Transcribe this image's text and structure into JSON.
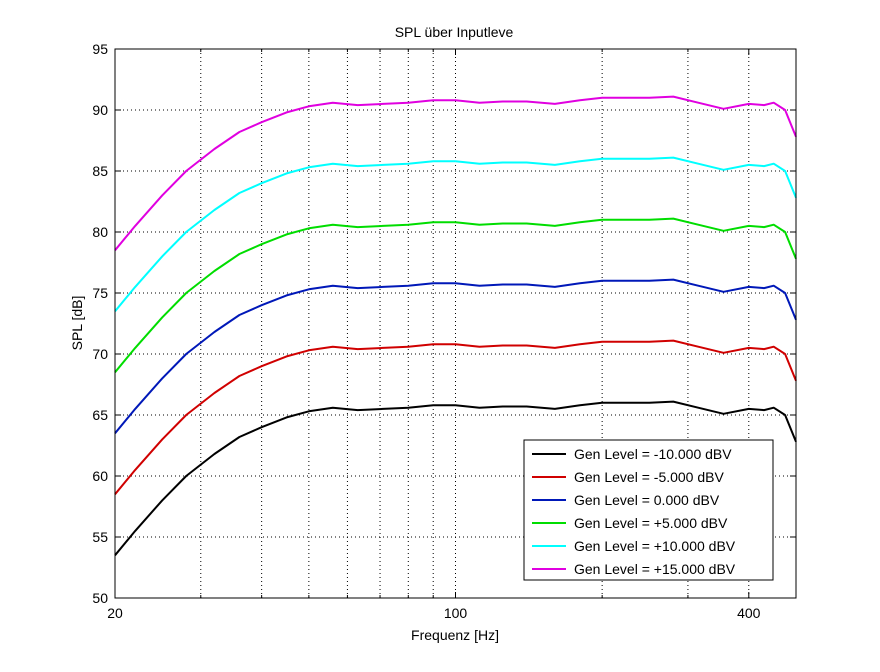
{
  "chart_data": {
    "type": "line",
    "title": "SPL über Inputleve",
    "xlabel": "Frequenz [Hz]",
    "ylabel": "SPL [dB]",
    "xscale": "log",
    "xlim": [
      20,
      500
    ],
    "ylim": [
      50,
      95
    ],
    "xticks": [
      20,
      100,
      400
    ],
    "xtick_labels": [
      "20",
      "100",
      "400"
    ],
    "yticks": [
      50,
      55,
      60,
      65,
      70,
      75,
      80,
      85,
      90,
      95
    ],
    "ytick_labels": [
      "50",
      "55",
      "60",
      "65",
      "70",
      "75",
      "80",
      "85",
      "90",
      "95"
    ],
    "grid": true,
    "legend_position": "bottom-right",
    "x": [
      20,
      22,
      25,
      28,
      32,
      36,
      40,
      45,
      50,
      56,
      63,
      71,
      80,
      90,
      100,
      112,
      125,
      140,
      160,
      180,
      200,
      224,
      250,
      280,
      315,
      355,
      400,
      430,
      450,
      475,
      500
    ],
    "base_series": [
      53.5,
      55.5,
      58.0,
      60.0,
      61.8,
      63.2,
      64.0,
      64.8,
      65.3,
      65.6,
      65.4,
      65.5,
      65.6,
      65.8,
      65.8,
      65.6,
      65.7,
      65.7,
      65.5,
      65.8,
      66.0,
      66.0,
      66.0,
      66.1,
      65.6,
      65.1,
      65.5,
      65.4,
      65.6,
      65.0,
      62.8
    ],
    "series": [
      {
        "name": "Gen Level = -10.000 dBV",
        "color": "#000000",
        "offset": 0
      },
      {
        "name": "Gen Level = -5.000 dBV",
        "color": "#d00000",
        "offset": 5
      },
      {
        "name": "Gen Level = 0.000 dBV",
        "color": "#0018b8",
        "offset": 10
      },
      {
        "name": "Gen Level = +5.000 dBV",
        "color": "#00dd00",
        "offset": 15
      },
      {
        "name": "Gen Level = +10.000 dBV",
        "color": "#00ffff",
        "offset": 20
      },
      {
        "name": "Gen Level = +15.000 dBV",
        "color": "#e000e0",
        "offset": 25
      }
    ]
  }
}
